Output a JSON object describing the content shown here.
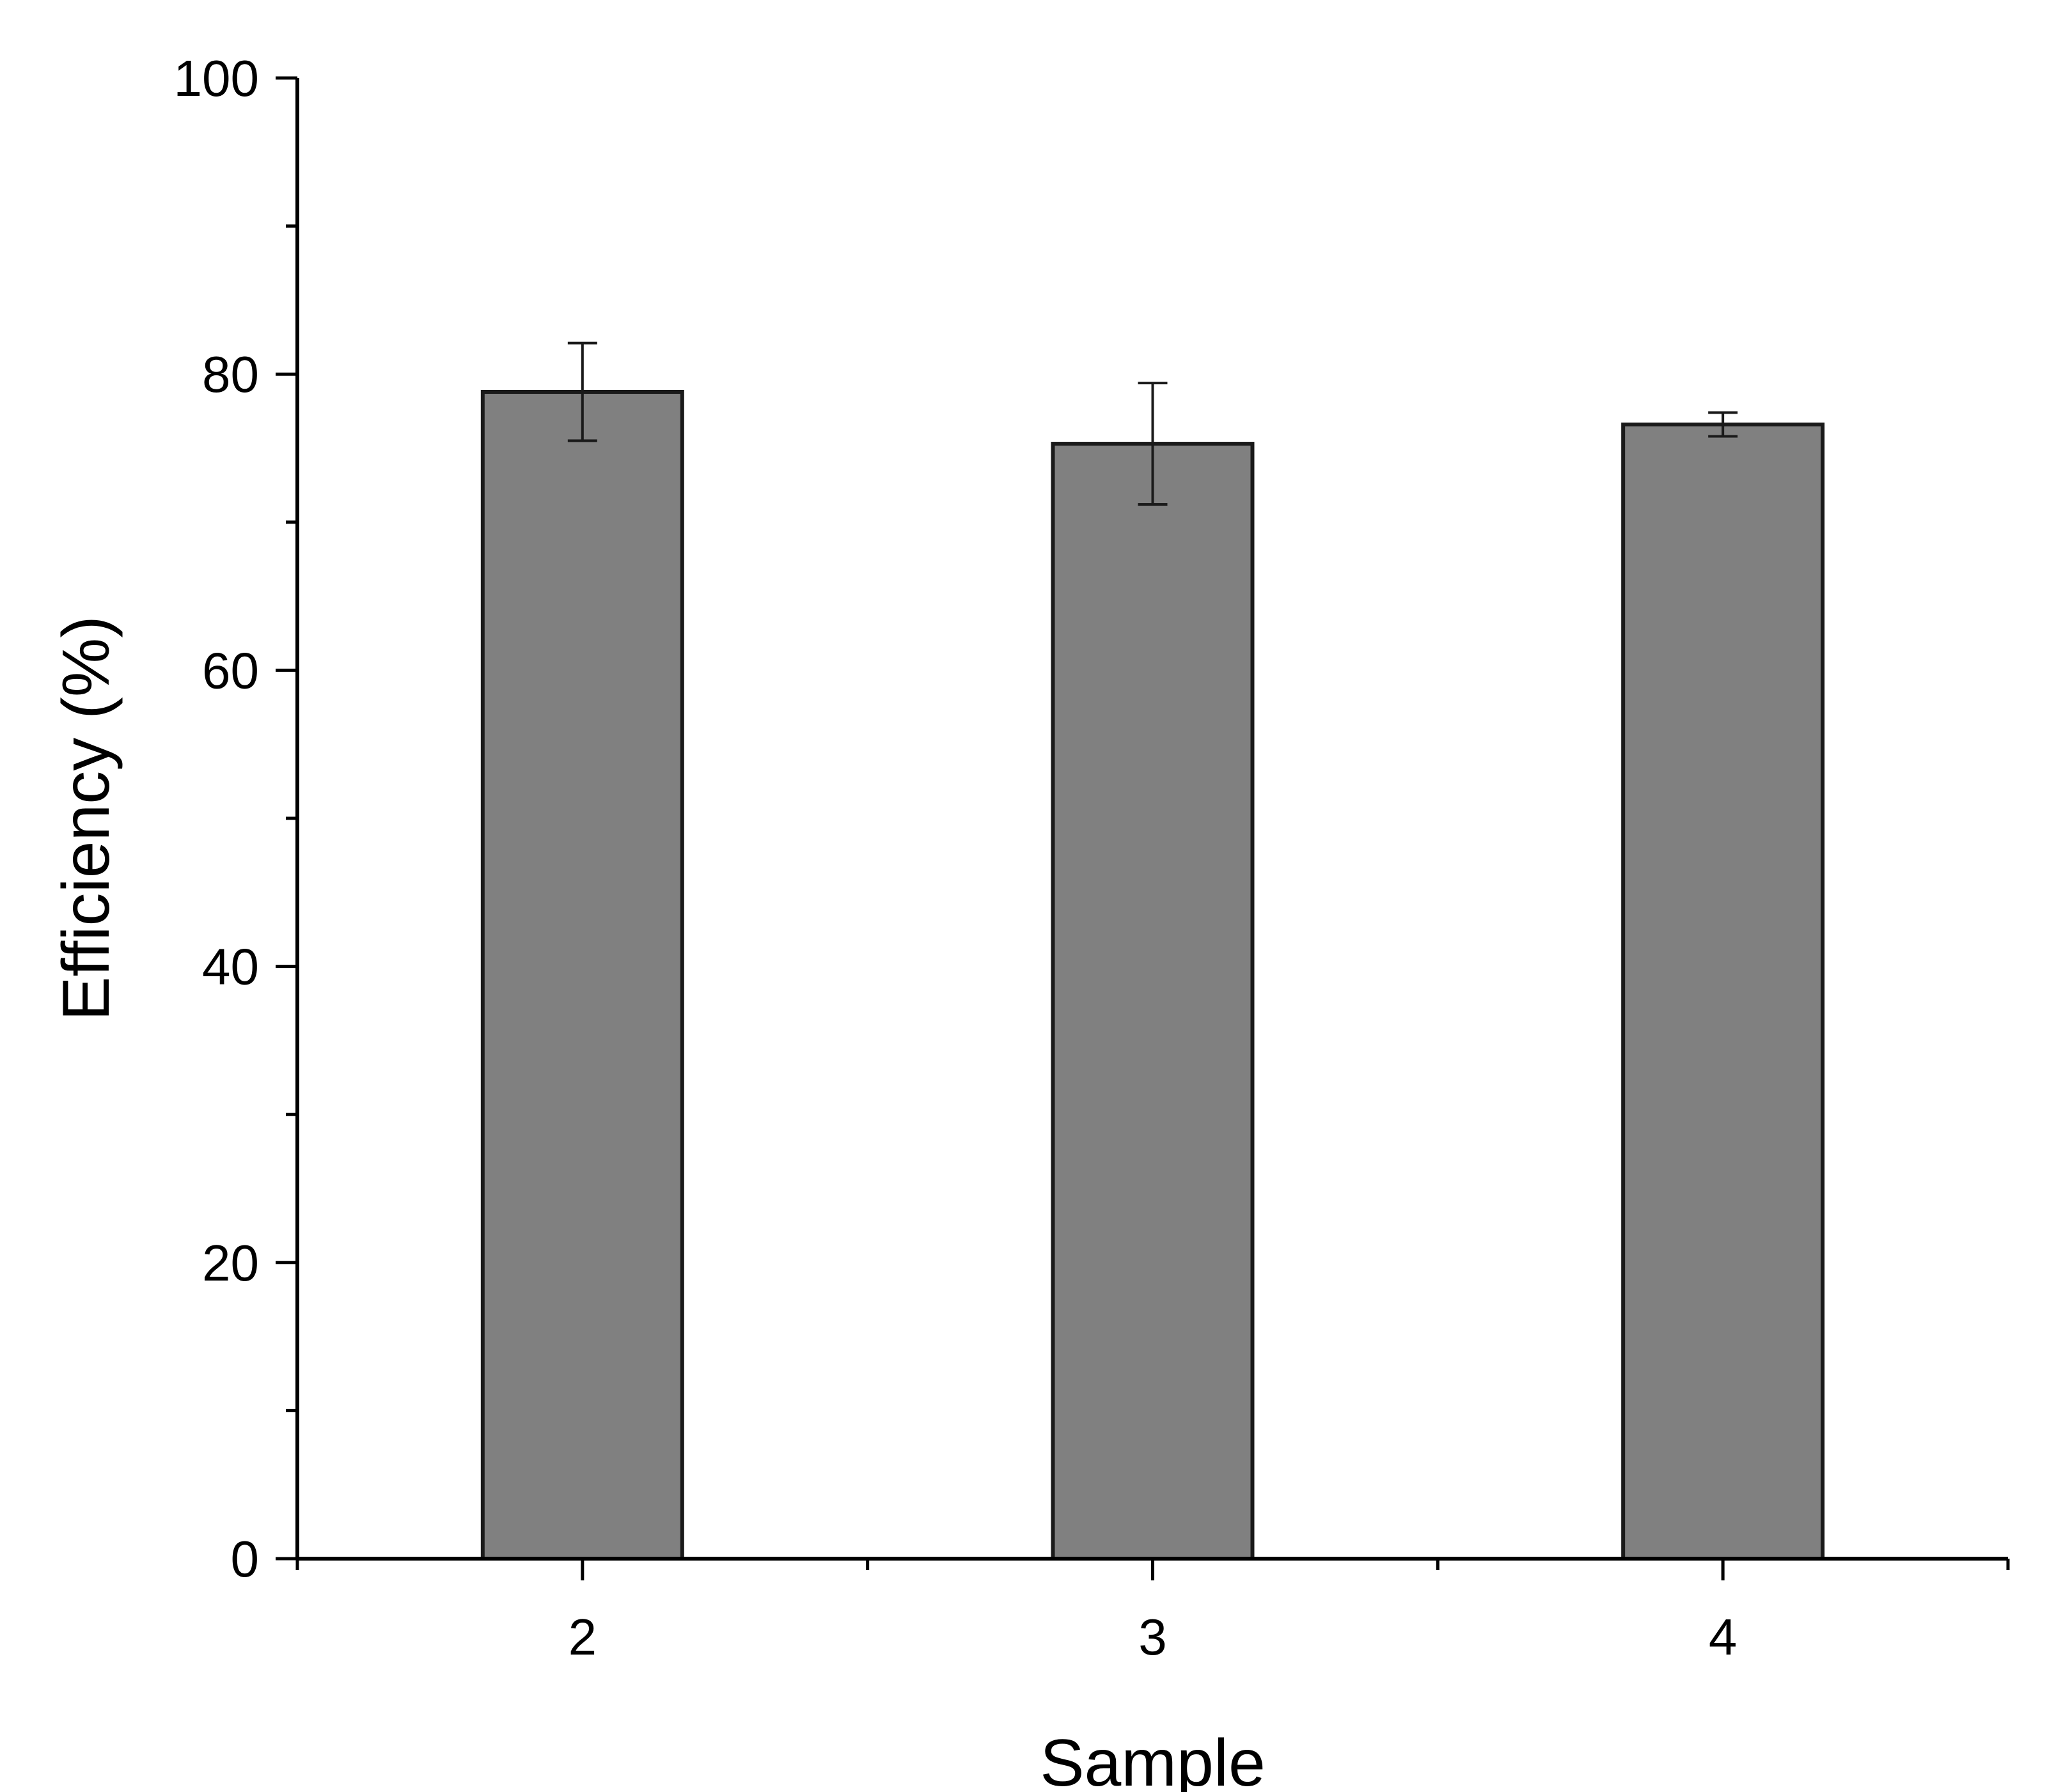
{
  "chart_data": {
    "type": "bar",
    "categories": [
      "2",
      "3",
      "4"
    ],
    "values": [
      78.8,
      75.3,
      76.6
    ],
    "error": [
      3.3,
      4.1,
      0.8
    ],
    "xlabel": "Sample",
    "ylabel": "Efficiency (%)",
    "ylim": [
      0,
      100
    ],
    "yticks": [
      0,
      20,
      40,
      60,
      80,
      100
    ],
    "yminor_ticks": [
      10,
      30,
      50,
      70,
      90
    ],
    "bar_color": "#808080",
    "grid": false
  }
}
